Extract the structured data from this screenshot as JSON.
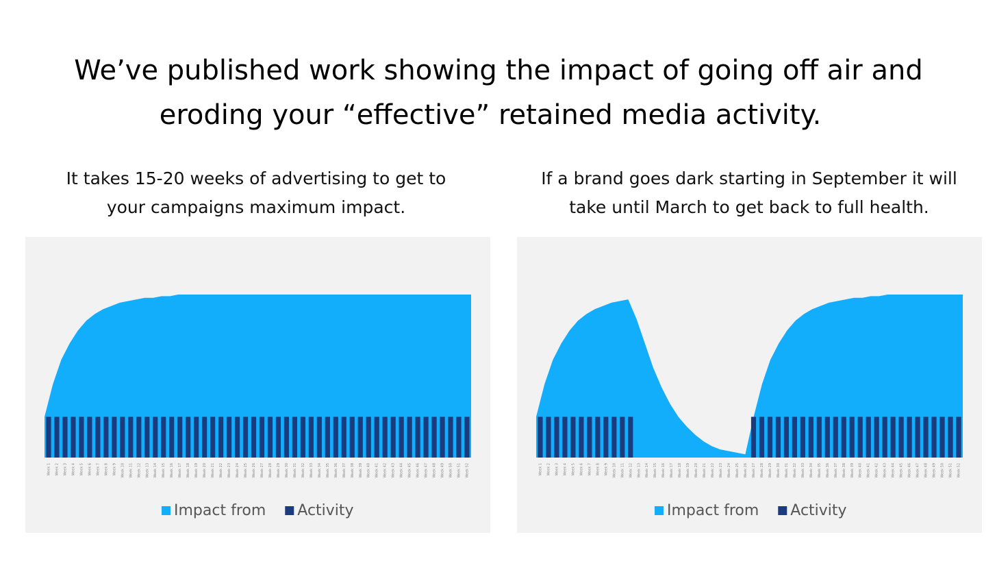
{
  "title": [
    "We’ve published work showing the impact of going off air and",
    "eroding your “effective” retained media activity."
  ],
  "chart_data": [
    {
      "type": "combo",
      "subtitle": [
        "It takes 15-20 weeks of advertising to get to",
        "your campaigns maximum impact."
      ],
      "categories": [
        "Week 1",
        "Week 2",
        "Week 3",
        "Week 4",
        "Week 5",
        "Week 6",
        "Week 7",
        "Week 8",
        "Week 9",
        "Week 10",
        "Week 11",
        "Week 12",
        "Week 13",
        "Week 14",
        "Week 15",
        "Week 16",
        "Week 17",
        "Week 18",
        "Week 19",
        "Week 20",
        "Week 21",
        "Week 22",
        "Week 23",
        "Week 24",
        "Week 25",
        "Week 26",
        "Week 27",
        "Week 28",
        "Week 29",
        "Week 30",
        "Week 31",
        "Week 32",
        "Week 33",
        "Week 34",
        "Week 35",
        "Week 36",
        "Week 37",
        "Week 38",
        "Week 39",
        "Week 40",
        "Week 41",
        "Week 42",
        "Week 43",
        "Week 44",
        "Week 45",
        "Week 46",
        "Week 47",
        "Week 48",
        "Week 49",
        "Week 50",
        "Week 51",
        "Week 52"
      ],
      "ylim": [
        0,
        100
      ],
      "legend": "bottom",
      "series": [
        {
          "name": "Impact from",
          "type": "area",
          "color": "#12adfb",
          "values": [
            25,
            45,
            60,
            70,
            78,
            84,
            88,
            91,
            93,
            95,
            96,
            97,
            98,
            98,
            99,
            99,
            100,
            100,
            100,
            100,
            100,
            100,
            100,
            100,
            100,
            100,
            100,
            100,
            100,
            100,
            100,
            100,
            100,
            100,
            100,
            100,
            100,
            100,
            100,
            100,
            100,
            100,
            100,
            100,
            100,
            100,
            100,
            100,
            100,
            100,
            100,
            100
          ]
        },
        {
          "name": "Activity",
          "type": "bar",
          "color": "#1b3b7c",
          "values": [
            25,
            25,
            25,
            25,
            25,
            25,
            25,
            25,
            25,
            25,
            25,
            25,
            25,
            25,
            25,
            25,
            25,
            25,
            25,
            25,
            25,
            25,
            25,
            25,
            25,
            25,
            25,
            25,
            25,
            25,
            25,
            25,
            25,
            25,
            25,
            25,
            25,
            25,
            25,
            25,
            25,
            25,
            25,
            25,
            25,
            25,
            25,
            25,
            25,
            25,
            25,
            25
          ]
        }
      ]
    },
    {
      "type": "combo",
      "subtitle": [
        "If a brand goes dark starting in September it will",
        "take until March to get back to full health."
      ],
      "categories": [
        "Week 1",
        "Week 2",
        "Week 3",
        "Week 4",
        "Week 5",
        "Week 6",
        "Week 7",
        "Week 8",
        "Week 9",
        "Week 10",
        "Week 11",
        "Week 12",
        "Week 13",
        "Week 14",
        "Week 15",
        "Week 16",
        "Week 17",
        "Week 18",
        "Week 19",
        "Week 20",
        "Week 21",
        "Week 22",
        "Week 23",
        "Week 24",
        "Week 25",
        "Week 26",
        "Week 27",
        "Week 28",
        "Week 29",
        "Week 30",
        "Week 31",
        "Week 32",
        "Week 33",
        "Week 34",
        "Week 35",
        "Week 36",
        "Week 37",
        "Week 38",
        "Week 39",
        "Week 40",
        "Week 41",
        "Week 42",
        "Week 43",
        "Week 44",
        "Week 45",
        "Week 46",
        "Week 47",
        "Week 48",
        "Week 49",
        "Week 50",
        "Week 51",
        "Week 52"
      ],
      "ylim": [
        0,
        100
      ],
      "legend": "bottom",
      "series": [
        {
          "name": "Impact from",
          "type": "area",
          "color": "#12adfb",
          "values": [
            25,
            45,
            60,
            70,
            78,
            84,
            88,
            91,
            93,
            95,
            96,
            97,
            85,
            70,
            55,
            43,
            33,
            25,
            19,
            14,
            10,
            7,
            5,
            4,
            3,
            2,
            25,
            45,
            60,
            70,
            78,
            84,
            88,
            91,
            93,
            95,
            96,
            97,
            98,
            98,
            99,
            99,
            100,
            100,
            100,
            100,
            100,
            100,
            100,
            100,
            100,
            100
          ]
        },
        {
          "name": "Activity",
          "type": "bar",
          "color": "#1b3b7c",
          "values": [
            25,
            25,
            25,
            25,
            25,
            25,
            25,
            25,
            25,
            25,
            25,
            25,
            0,
            0,
            0,
            0,
            0,
            0,
            0,
            0,
            0,
            0,
            0,
            0,
            0,
            0,
            25,
            25,
            25,
            25,
            25,
            25,
            25,
            25,
            25,
            25,
            25,
            25,
            25,
            25,
            25,
            25,
            25,
            25,
            25,
            25,
            25,
            25,
            25,
            25,
            25,
            25
          ]
        }
      ]
    }
  ]
}
